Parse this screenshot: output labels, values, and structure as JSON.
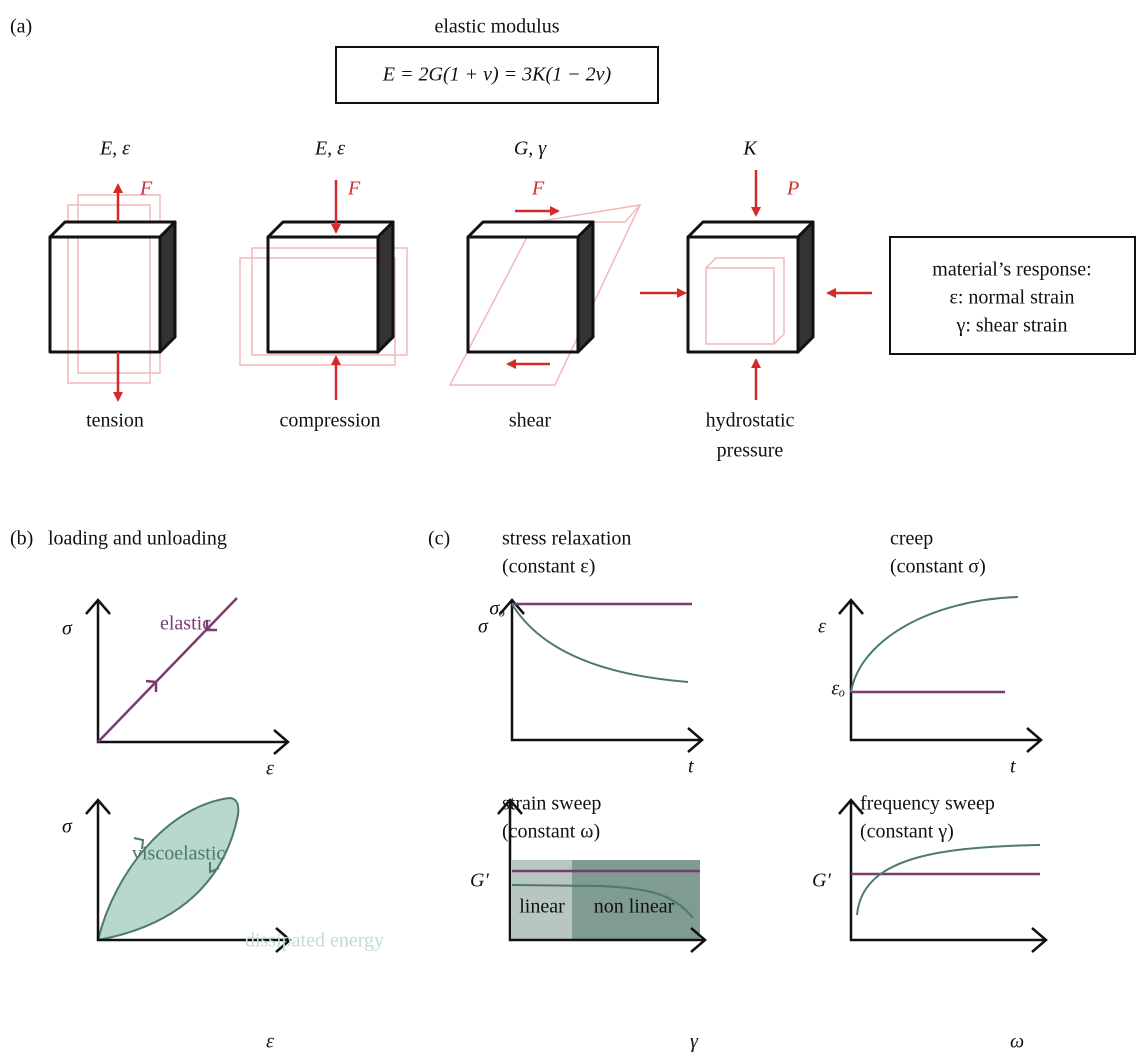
{
  "panel_a": {
    "label": "(a)",
    "title": "elastic modulus",
    "formula": "E = 2G(1 + v) = 3K(1 − 2v)",
    "modes": [
      {
        "symbols": "E, ε",
        "force": "F",
        "label": [
          "tension"
        ]
      },
      {
        "symbols": "E, ε",
        "force": "F",
        "label": [
          "compression"
        ]
      },
      {
        "symbols": "G, γ",
        "force": "F",
        "label": [
          "shear"
        ]
      },
      {
        "symbols": "K",
        "force": "P",
        "label": [
          "hydrostatic",
          "pressure"
        ]
      }
    ],
    "response": [
      "material’s response:",
      "ε: normal strain",
      "γ: shear strain"
    ]
  },
  "panel_b": {
    "label": "(b)",
    "title": "loading and unloading",
    "plots": [
      {
        "y_axis": "σ",
        "x_axis": "ε",
        "curve": "elastic"
      },
      {
        "y_axis": "σ",
        "x_axis": "ε",
        "curve": "viscoelastic",
        "area": "dissipated energy"
      }
    ]
  },
  "panel_c": {
    "label": "(c)",
    "plots": [
      {
        "title": [
          "stress relaxation",
          "(constant ε)"
        ],
        "y_axis": "σ",
        "x_axis": "t",
        "y_tick": "σₒ"
      },
      {
        "title": [
          "creep",
          "(constant σ)"
        ],
        "y_axis": "ε",
        "x_axis": "t",
        "y_tick": "εₒ"
      },
      {
        "title": [
          "strain sweep",
          "(constant ω)"
        ],
        "y_axis": "G′",
        "x_axis": "γ",
        "regions": [
          "linear",
          "non linear"
        ]
      },
      {
        "title": [
          "frequency sweep",
          "(constant γ)"
        ],
        "y_axis": "G′",
        "x_axis": "ω"
      }
    ]
  }
}
